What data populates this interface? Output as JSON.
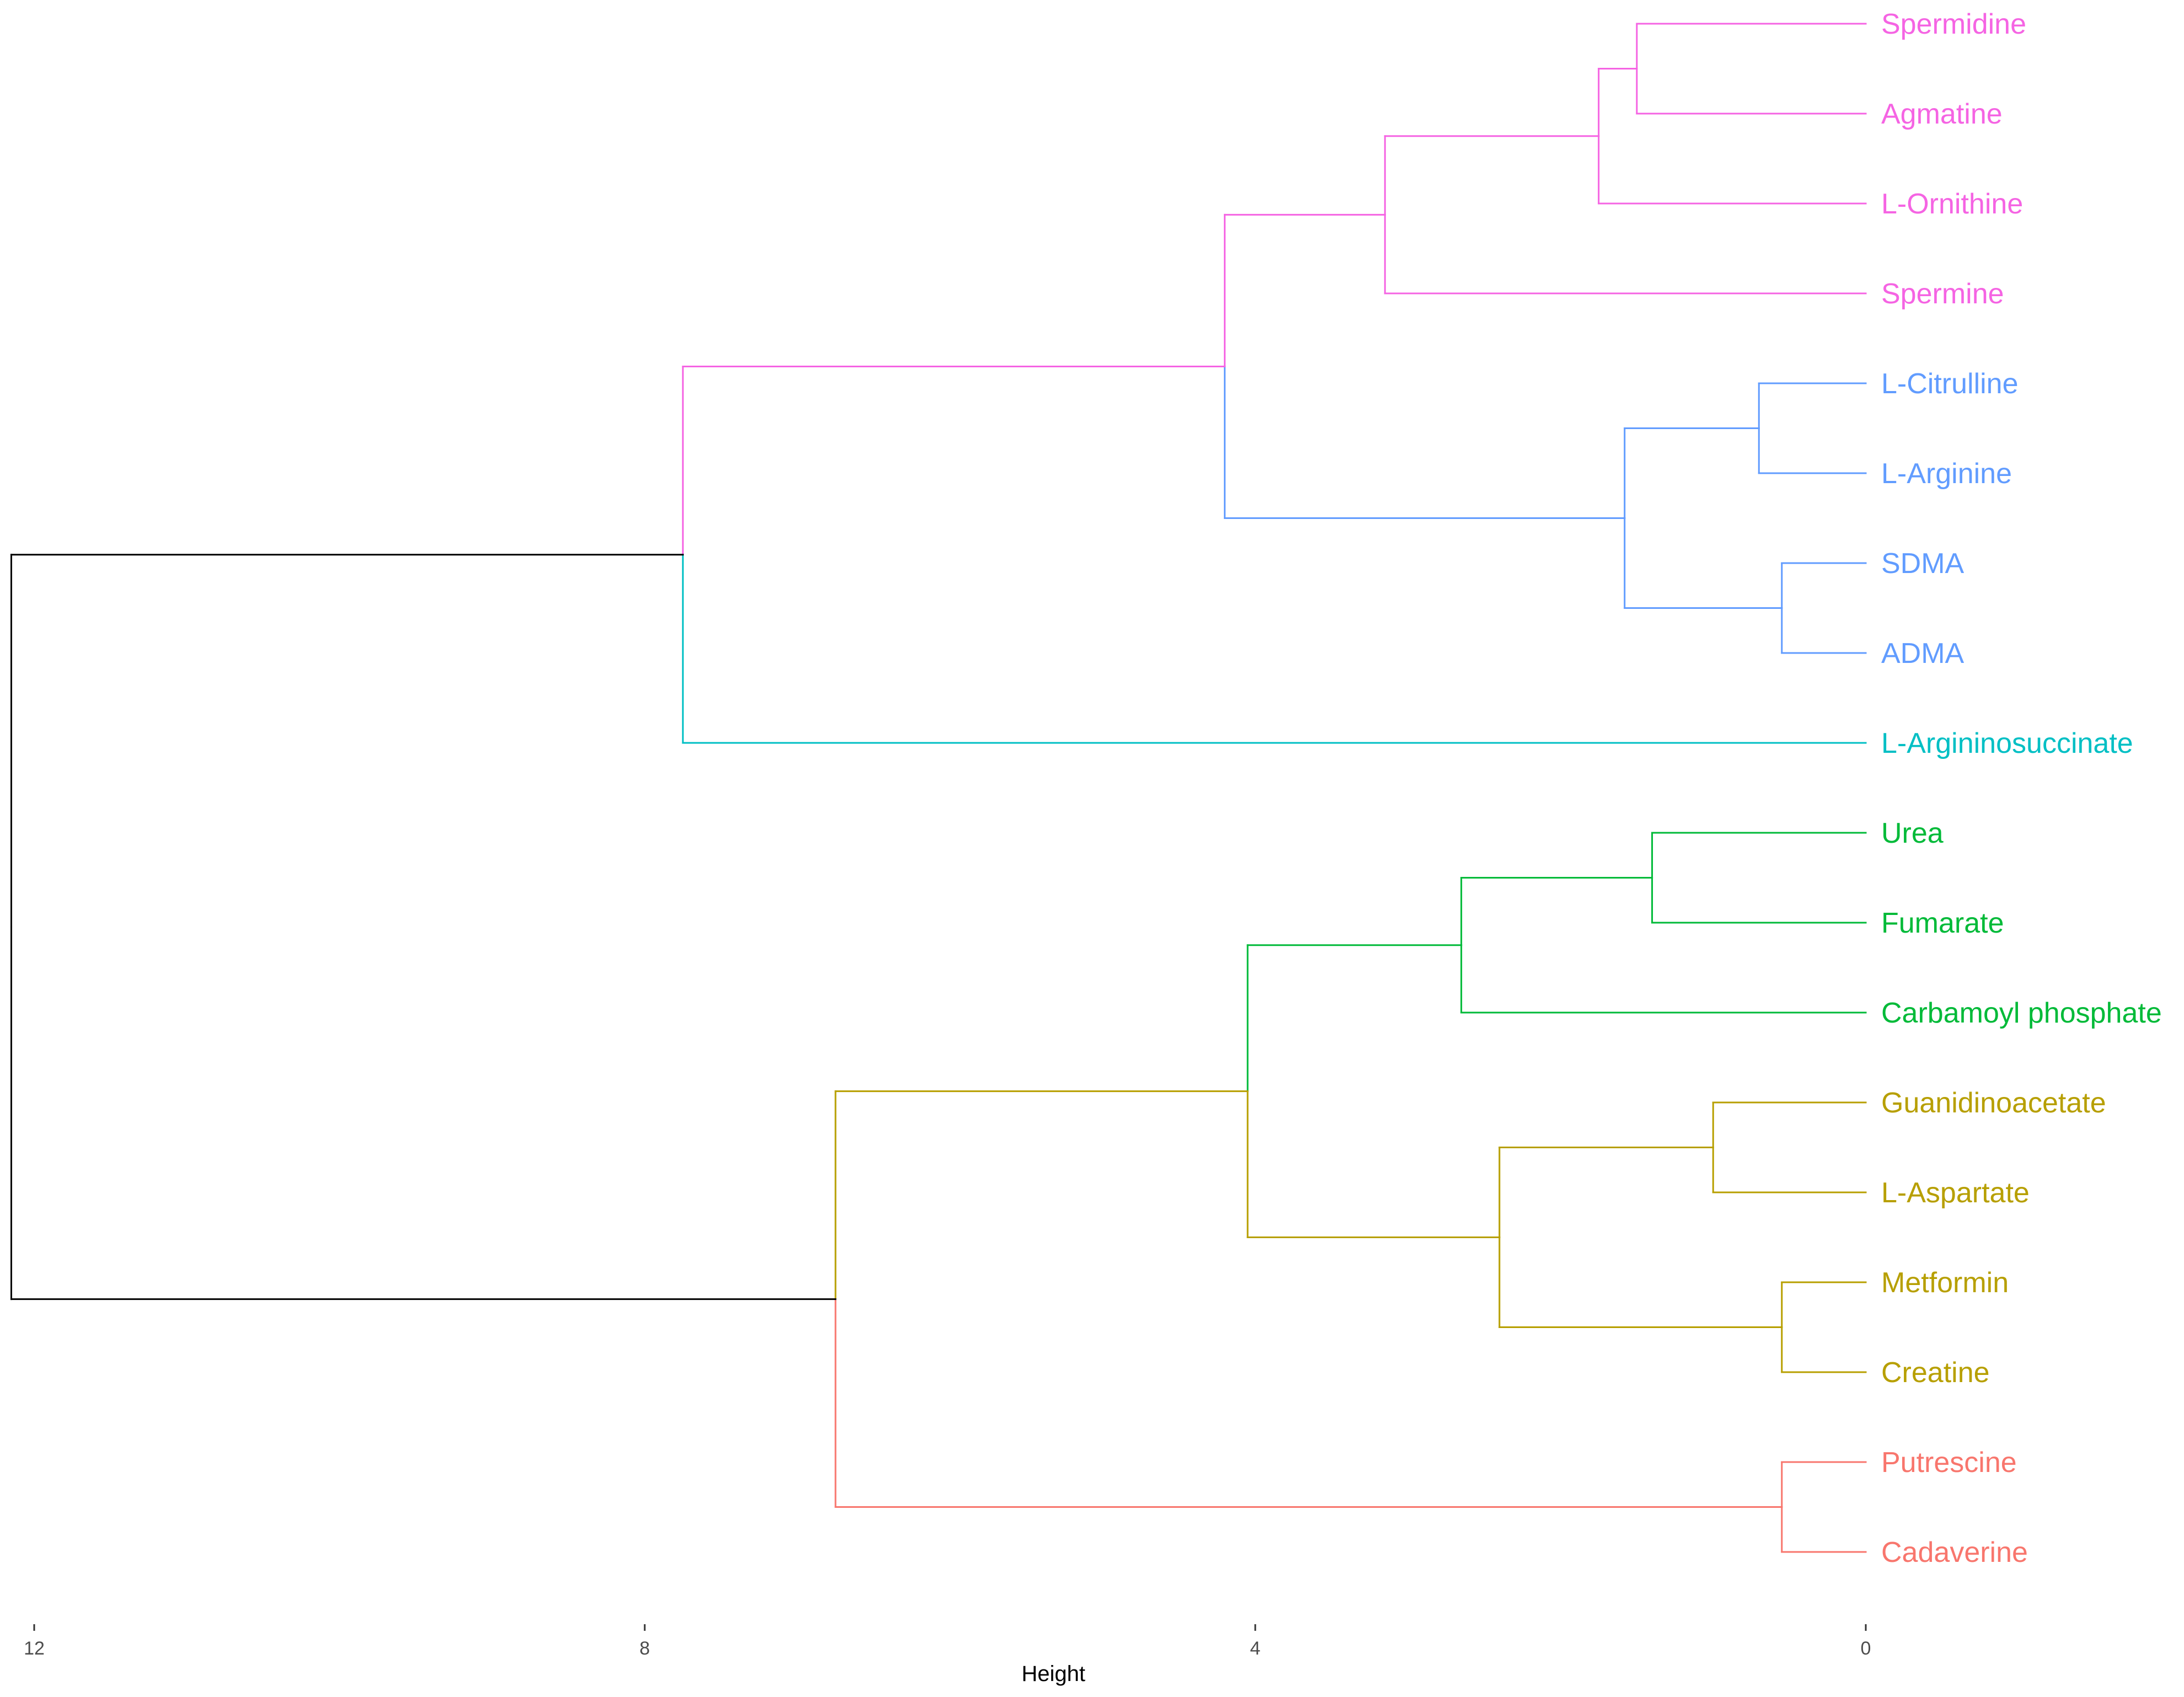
{
  "chart_data": {
    "type": "dendrogram",
    "orientation": "horizontal",
    "xlabel": "Height",
    "xlim": [
      12,
      0
    ],
    "x_ticks": [
      12,
      8,
      4,
      0
    ],
    "leaves": [
      {
        "name": "Spermidine",
        "cluster": "magenta"
      },
      {
        "name": "Agmatine",
        "cluster": "magenta"
      },
      {
        "name": "L-Ornithine",
        "cluster": "magenta"
      },
      {
        "name": "Spermine",
        "cluster": "magenta"
      },
      {
        "name": "L-Citrulline",
        "cluster": "blue"
      },
      {
        "name": "L-Arginine",
        "cluster": "blue"
      },
      {
        "name": "SDMA",
        "cluster": "blue"
      },
      {
        "name": "ADMA",
        "cluster": "blue"
      },
      {
        "name": "L-Argininosuccinate",
        "cluster": "cyan"
      },
      {
        "name": "Urea",
        "cluster": "green"
      },
      {
        "name": "Fumarate",
        "cluster": "green"
      },
      {
        "name": "Carbamoyl phosphate",
        "cluster": "green"
      },
      {
        "name": "Guanidinoacetate",
        "cluster": "olive"
      },
      {
        "name": "L-Aspartate",
        "cluster": "olive"
      },
      {
        "name": "Metformin",
        "cluster": "olive"
      },
      {
        "name": "Creatine",
        "cluster": "olive"
      },
      {
        "name": "Putrescine",
        "cluster": "red"
      },
      {
        "name": "Cadaverine",
        "cluster": "red"
      }
    ],
    "cluster_colors": {
      "magenta": "#F564E3",
      "blue": "#619CFF",
      "cyan": "#00BFC4",
      "green": "#00BA38",
      "olive": "#B79F00",
      "red": "#F8766D",
      "root": "#000000"
    },
    "tree": {
      "id": "root",
      "height": 12.15,
      "color": "root",
      "children": [
        {
          "id": "upper",
          "height": 7.75,
          "color": "root",
          "children": [
            {
              "id": "mag_blue",
              "height": 4.2,
              "color": "magenta",
              "children": [
                {
                  "id": "mag",
                  "height": 3.15,
                  "color": "magenta",
                  "children": [
                    {
                      "id": "mag_a",
                      "height": 1.75,
                      "color": "magenta",
                      "children": [
                        {
                          "id": "mag_b",
                          "height": 1.5,
                          "color": "magenta",
                          "children": [
                            {
                              "leaf": "Spermidine"
                            },
                            {
                              "leaf": "Agmatine"
                            }
                          ]
                        },
                        {
                          "leaf": "L-Ornithine"
                        }
                      ]
                    },
                    {
                      "leaf": "Spermine"
                    }
                  ]
                },
                {
                  "id": "blue",
                  "height": 1.58,
                  "color": "blue",
                  "children": [
                    {
                      "id": "blue_a",
                      "height": 0.7,
                      "color": "blue",
                      "children": [
                        {
                          "leaf": "L-Citrulline"
                        },
                        {
                          "leaf": "L-Arginine"
                        }
                      ]
                    },
                    {
                      "id": "blue_b",
                      "height": 0.55,
                      "color": "blue",
                      "children": [
                        {
                          "leaf": "SDMA"
                        },
                        {
                          "leaf": "ADMA"
                        }
                      ]
                    }
                  ]
                }
              ]
            },
            {
              "leaf": "L-Argininosuccinate"
            }
          ]
        },
        {
          "id": "lower",
          "height": 6.75,
          "color": "root",
          "children": [
            {
              "id": "green_olive",
              "height": 4.05,
              "color": "olive",
              "children": [
                {
                  "id": "green",
                  "height": 2.65,
                  "color": "green",
                  "children": [
                    {
                      "id": "green_a",
                      "height": 1.4,
                      "color": "green",
                      "children": [
                        {
                          "leaf": "Urea"
                        },
                        {
                          "leaf": "Fumarate"
                        }
                      ]
                    },
                    {
                      "leaf": "Carbamoyl phosphate"
                    }
                  ]
                },
                {
                  "id": "olive",
                  "height": 2.4,
                  "color": "olive",
                  "children": [
                    {
                      "id": "olive_a",
                      "height": 1.0,
                      "color": "olive",
                      "children": [
                        {
                          "leaf": "Guanidinoacetate"
                        },
                        {
                          "leaf": "L-Aspartate"
                        }
                      ]
                    },
                    {
                      "id": "olive_b",
                      "height": 0.55,
                      "color": "olive",
                      "children": [
                        {
                          "leaf": "Metformin"
                        },
                        {
                          "leaf": "Creatine"
                        }
                      ]
                    }
                  ]
                }
              ]
            },
            {
              "id": "red",
              "height": 0.55,
              "color": "red",
              "children": [
                {
                  "leaf": "Putrescine"
                },
                {
                  "leaf": "Cadaverine"
                }
              ]
            }
          ]
        }
      ]
    }
  }
}
